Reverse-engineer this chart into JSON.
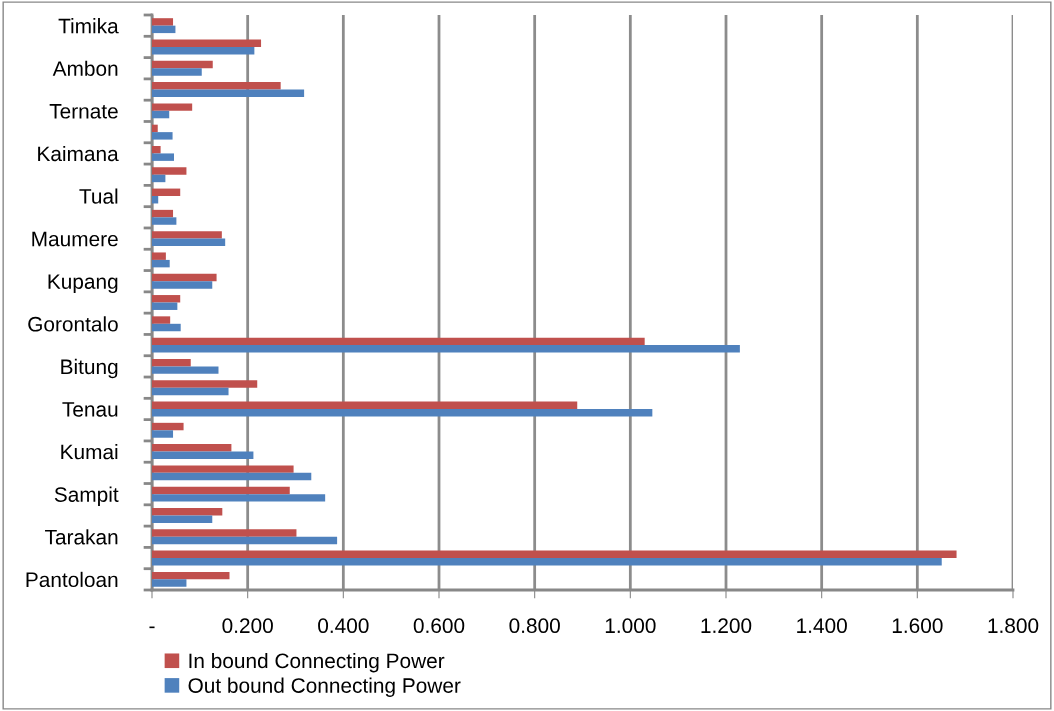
{
  "chart_data": {
    "type": "bar",
    "orientation": "horizontal",
    "categories": [
      "Timika",
      null,
      "Ambon",
      null,
      "Ternate",
      null,
      "Kaimana",
      null,
      "Tual",
      null,
      "Maumere",
      null,
      "Kupang",
      null,
      "Gorontalo",
      null,
      "Bitung",
      null,
      "Tenau",
      null,
      "Kumai",
      null,
      "Sampit",
      null,
      "Tarakan",
      null,
      "Pantoloan"
    ],
    "series": [
      {
        "name": "In bound Connecting Power",
        "color": "#c0504d",
        "values": [
          0.044,
          0.228,
          0.127,
          0.269,
          0.084,
          0.012,
          0.018,
          0.072,
          0.059,
          0.044,
          0.146,
          0.029,
          0.135,
          0.059,
          0.038,
          1.03,
          0.081,
          0.22,
          0.889,
          0.066,
          0.166,
          0.296,
          0.288,
          0.147,
          0.302,
          1.682,
          0.162
        ]
      },
      {
        "name": "Out bound Connecting Power",
        "color": "#4f81bd",
        "values": [
          0.049,
          0.214,
          0.104,
          0.318,
          0.036,
          0.043,
          0.046,
          0.028,
          0.013,
          0.051,
          0.153,
          0.037,
          0.126,
          0.053,
          0.06,
          1.229,
          0.139,
          0.16,
          1.046,
          0.044,
          0.212,
          0.333,
          0.362,
          0.126,
          0.387,
          1.651,
          0.072
        ]
      }
    ],
    "xlim": [
      0,
      1.8
    ],
    "xticks": [
      {
        "value": 0,
        "label": "-"
      },
      {
        "value": 0.2,
        "label": "0.200"
      },
      {
        "value": 0.4,
        "label": "0.400"
      },
      {
        "value": 0.6,
        "label": "0.600"
      },
      {
        "value": 0.8,
        "label": "0.800"
      },
      {
        "value": 1.0,
        "label": "1.000"
      },
      {
        "value": 1.2,
        "label": "1.200"
      },
      {
        "value": 1.4,
        "label": "1.400"
      },
      {
        "value": 1.6,
        "label": "1.600"
      },
      {
        "value": 1.8,
        "label": "1.800"
      }
    ],
    "grid": "x",
    "legend": "bottom left"
  }
}
